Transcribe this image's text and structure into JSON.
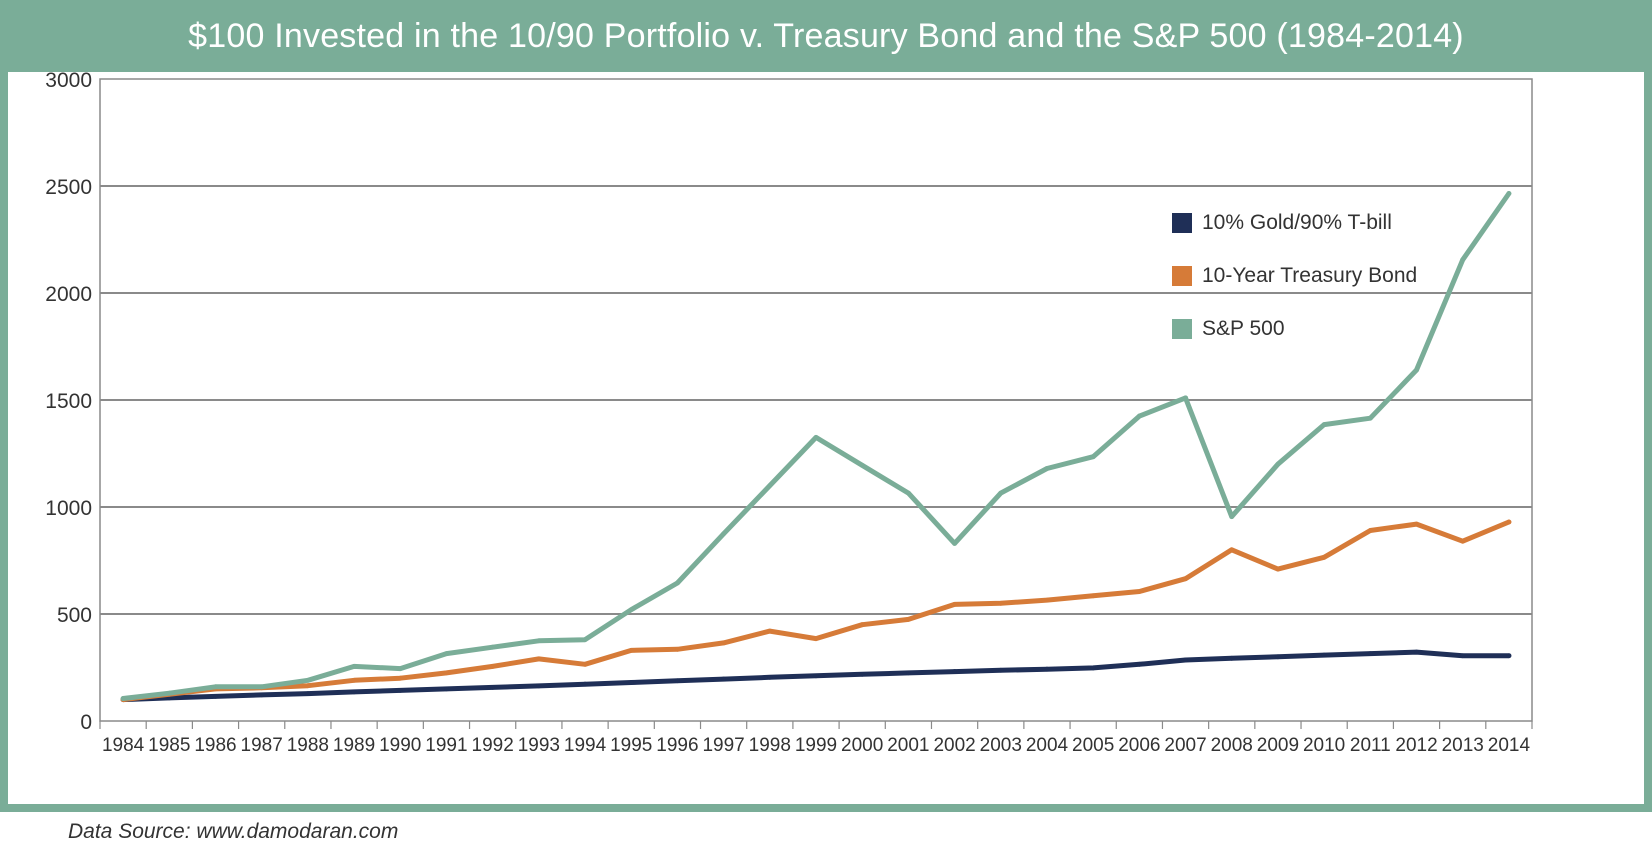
{
  "title": "$100 Invested in the 10/90 Portfolio v. Treasury Bond and the S&P 500 (1984-2014)",
  "source": "Data Source: www.damodaran.com",
  "chart_data": {
    "type": "line",
    "title": "$100 Invested in the 10/90 Portfolio v. Treasury Bond and the S&P 500 (1984-2014)",
    "xlabel": "",
    "ylabel": "",
    "ylim": [
      0,
      3000
    ],
    "yticks": [
      0,
      500,
      1000,
      1500,
      2000,
      2500,
      3000
    ],
    "grid": true,
    "legend_position": "top-right",
    "categories": [
      "1984",
      "1985",
      "1986",
      "1987",
      "1988",
      "1989",
      "1990",
      "1991",
      "1992",
      "1993",
      "1994",
      "1995",
      "1996",
      "1997",
      "1998",
      "1999",
      "2000",
      "2001",
      "2002",
      "2003",
      "2004",
      "2005",
      "2006",
      "2007",
      "2008",
      "2009",
      "2010",
      "2011",
      "2012",
      "2013",
      "2014"
    ],
    "series": [
      {
        "name": "10% Gold/90% T-bill",
        "color": "#1f2f57",
        "values": [
          100,
          108,
          115,
          122,
          128,
          136,
          143,
          150,
          157,
          164,
          172,
          180,
          188,
          196,
          204,
          211,
          218,
          225,
          231,
          237,
          242,
          248,
          265,
          285,
          293,
          300,
          308,
          315,
          322,
          305,
          305
        ]
      },
      {
        "name": "10-Year Treasury Bond",
        "color": "#d67b38",
        "values": [
          100,
          125,
          150,
          155,
          165,
          190,
          200,
          225,
          255,
          290,
          265,
          330,
          335,
          365,
          420,
          385,
          450,
          475,
          545,
          550,
          565,
          585,
          605,
          665,
          800,
          710,
          765,
          890,
          920,
          840,
          930
        ]
      },
      {
        "name": "S&P 500",
        "color": "#7aad98",
        "values": [
          105,
          130,
          160,
          160,
          190,
          255,
          245,
          315,
          345,
          375,
          380,
          520,
          645,
          875,
          1100,
          1325,
          1195,
          1065,
          830,
          1065,
          1180,
          1235,
          1425,
          1510,
          955,
          1200,
          1385,
          1415,
          1640,
          2155,
          2465
        ]
      }
    ]
  }
}
